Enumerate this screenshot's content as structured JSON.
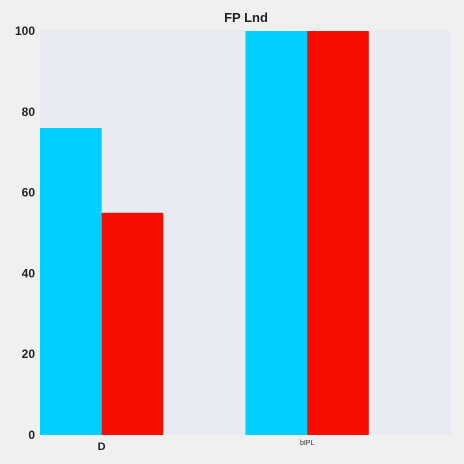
{
  "chart_data": {
    "type": "bar",
    "title": "FP Lnd",
    "categories": [
      "D",
      "bIPL"
    ],
    "series": [
      {
        "values": [
          76,
          100
        ]
      },
      {
        "values": [
          55,
          100
        ]
      }
    ],
    "ylim": [
      0,
      100
    ],
    "yticks": [
      "0",
      "20",
      "40",
      "60",
      "80",
      "100"
    ],
    "xlabel": "",
    "ylabel": "",
    "grid": false,
    "legend": "none"
  },
  "colors": {
    "series": [
      "#00cfff",
      "#f50d00"
    ],
    "plot_background": "#eaeaf2",
    "page_background": "#f0f0f0"
  }
}
